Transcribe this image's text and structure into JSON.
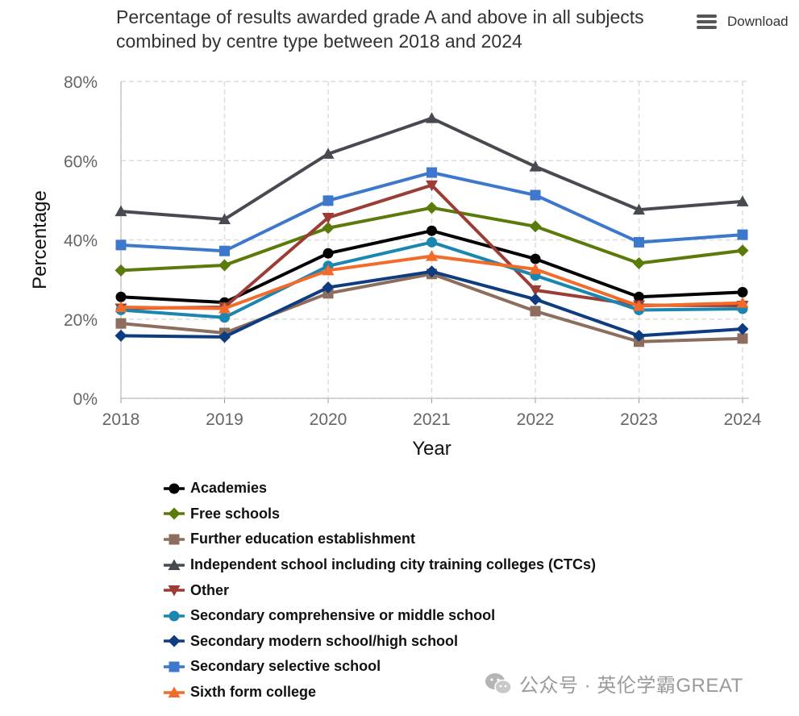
{
  "title": "Percentage of results awarded grade A and above in all subjects combined by centre type between 2018 and 2024",
  "download_label": "Download",
  "watermark": "公众号 · 英伦学霸GREAT",
  "chart_data": {
    "type": "line",
    "title": "Percentage of results awarded grade A and above in all subjects combined by centre type between 2018 and 2024",
    "xlabel": "Year",
    "ylabel": "Percentage",
    "categories": [
      "2018",
      "2019",
      "2020",
      "2021",
      "2022",
      "2023",
      "2024"
    ],
    "ylim": [
      0,
      80
    ],
    "yticks": [
      0,
      20,
      40,
      60,
      80
    ],
    "ytick_labels": [
      "0%",
      "20%",
      "40%",
      "60%",
      "80%"
    ],
    "grid": true,
    "legend_position": "bottom",
    "series": [
      {
        "name": "Academies",
        "color": "#000000",
        "marker": "circle",
        "values": [
          25.6,
          24.2,
          36.6,
          42.3,
          35.2,
          25.6,
          26.8
        ]
      },
      {
        "name": "Free schools",
        "color": "#5a7a0a",
        "marker": "diamond",
        "values": [
          32.3,
          33.6,
          43.0,
          48.1,
          43.4,
          34.1,
          37.3
        ]
      },
      {
        "name": "Further education establishment",
        "color": "#8c6d5e",
        "marker": "square",
        "values": [
          18.9,
          16.5,
          26.5,
          31.4,
          22.0,
          14.3,
          15.1
        ]
      },
      {
        "name": "Independent school including city training colleges (CTCs)",
        "color": "#474a51",
        "marker": "triangle",
        "values": [
          47.2,
          45.2,
          61.7,
          70.7,
          58.5,
          47.6,
          49.7
        ]
      },
      {
        "name": "Other",
        "color": "#9b3d35",
        "marker": "triangle-down",
        "values": [
          22.7,
          23.0,
          45.6,
          53.8,
          27.3,
          23.5,
          23.4
        ]
      },
      {
        "name": "Secondary comprehensive or middle school",
        "color": "#1b86b0",
        "marker": "circle",
        "values": [
          22.3,
          20.4,
          33.4,
          39.4,
          31.0,
          22.3,
          22.6
        ]
      },
      {
        "name": "Secondary modern school/high school",
        "color": "#0d3c80",
        "marker": "diamond",
        "values": [
          15.8,
          15.5,
          28.0,
          32.0,
          25.0,
          15.8,
          17.5
        ]
      },
      {
        "name": "Secondary selective school",
        "color": "#3d78cc",
        "marker": "square",
        "values": [
          38.7,
          37.2,
          49.9,
          57.0,
          51.3,
          39.4,
          41.3
        ]
      },
      {
        "name": "Sixth form college",
        "color": "#f26b2b",
        "marker": "triangle",
        "values": [
          23.0,
          22.7,
          32.3,
          35.9,
          32.6,
          23.3,
          24.1
        ]
      }
    ]
  }
}
